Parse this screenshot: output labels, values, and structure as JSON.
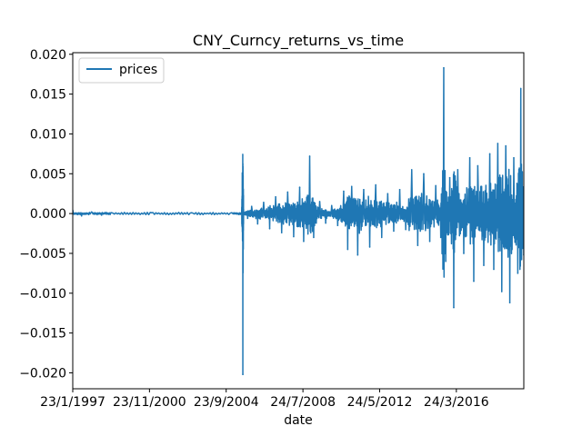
{
  "chart_data": {
    "type": "line",
    "title": "CNY_Curncy_returns_vs_time",
    "xlabel": "date",
    "ylabel": "",
    "x_ticks": [
      "23/1/1997",
      "23/11/2000",
      "23/9/2004",
      "24/7/2008",
      "24/5/2012",
      "24/3/2016"
    ],
    "y_ticks": [
      "0.020",
      "0.015",
      "0.010",
      "0.005",
      "0.000",
      "−0.005",
      "−0.010",
      "−0.015",
      "−0.020"
    ],
    "ylim": [
      -0.022,
      0.0202
    ],
    "xlim_years": [
      1997.06,
      2019.6
    ],
    "legend": {
      "position": "top-left",
      "entries": [
        "prices"
      ]
    },
    "grid": false,
    "series": [
      {
        "name": "prices",
        "color": "#1f77b4",
        "points": [
          [
            1997.06,
            0.0004
          ],
          [
            1997.5,
            -0.0003
          ],
          [
            1998.0,
            0.0002
          ],
          [
            1998.5,
            -0.0002
          ],
          [
            1999.0,
            0.0001
          ],
          [
            2000.0,
            -0.0001
          ],
          [
            2001.0,
            0.0001
          ],
          [
            2002.0,
            -0.0001
          ],
          [
            2003.0,
            0.0001
          ],
          [
            2004.0,
            -0.0001
          ],
          [
            2005.0,
            0.0001
          ],
          [
            2005.5,
            0.0001
          ],
          [
            2005.56,
            -0.0202
          ],
          [
            2005.6,
            0.0002
          ],
          [
            2005.8,
            -0.0006
          ],
          [
            2006.0,
            0.0009
          ],
          [
            2006.3,
            -0.0013
          ],
          [
            2006.6,
            0.0014
          ],
          [
            2006.9,
            -0.0019
          ],
          [
            2007.2,
            0.0021
          ],
          [
            2007.5,
            -0.0024
          ],
          [
            2007.8,
            0.0027
          ],
          [
            2008.1,
            -0.0029
          ],
          [
            2008.4,
            0.0033
          ],
          [
            2008.6,
            -0.0035
          ],
          [
            2008.9,
            0.0072
          ],
          [
            2009.1,
            -0.003
          ],
          [
            2009.4,
            0.0015
          ],
          [
            2009.7,
            -0.0012
          ],
          [
            2010.0,
            0.001
          ],
          [
            2010.3,
            -0.0015
          ],
          [
            2010.6,
            0.0028
          ],
          [
            2010.8,
            -0.0045
          ],
          [
            2011.0,
            0.0034
          ],
          [
            2011.3,
            -0.0052
          ],
          [
            2011.6,
            0.003
          ],
          [
            2011.9,
            -0.0042
          ],
          [
            2012.2,
            0.0036
          ],
          [
            2012.5,
            -0.003
          ],
          [
            2012.8,
            0.0025
          ],
          [
            2013.1,
            -0.0022
          ],
          [
            2013.4,
            0.003
          ],
          [
            2013.7,
            -0.002
          ],
          [
            2014.0,
            0.0055
          ],
          [
            2014.3,
            -0.004
          ],
          [
            2014.6,
            0.005
          ],
          [
            2014.9,
            -0.0035
          ],
          [
            2015.2,
            0.0035
          ],
          [
            2015.45,
            -0.003
          ],
          [
            2015.6,
            0.0183
          ],
          [
            2015.7,
            -0.006
          ],
          [
            2015.9,
            0.0045
          ],
          [
            2016.1,
            -0.0118
          ],
          [
            2016.3,
            0.0055
          ],
          [
            2016.6,
            -0.005
          ],
          [
            2016.9,
            0.007
          ],
          [
            2017.1,
            -0.0085
          ],
          [
            2017.3,
            0.006
          ],
          [
            2017.6,
            -0.0065
          ],
          [
            2017.9,
            0.0075
          ],
          [
            2018.1,
            -0.007
          ],
          [
            2018.3,
            0.0088
          ],
          [
            2018.5,
            -0.0098
          ],
          [
            2018.7,
            0.0085
          ],
          [
            2018.9,
            -0.0112
          ],
          [
            2019.1,
            0.007
          ],
          [
            2019.3,
            -0.0075
          ],
          [
            2019.45,
            0.0157
          ],
          [
            2019.6,
            -0.0052
          ]
        ]
      }
    ]
  }
}
